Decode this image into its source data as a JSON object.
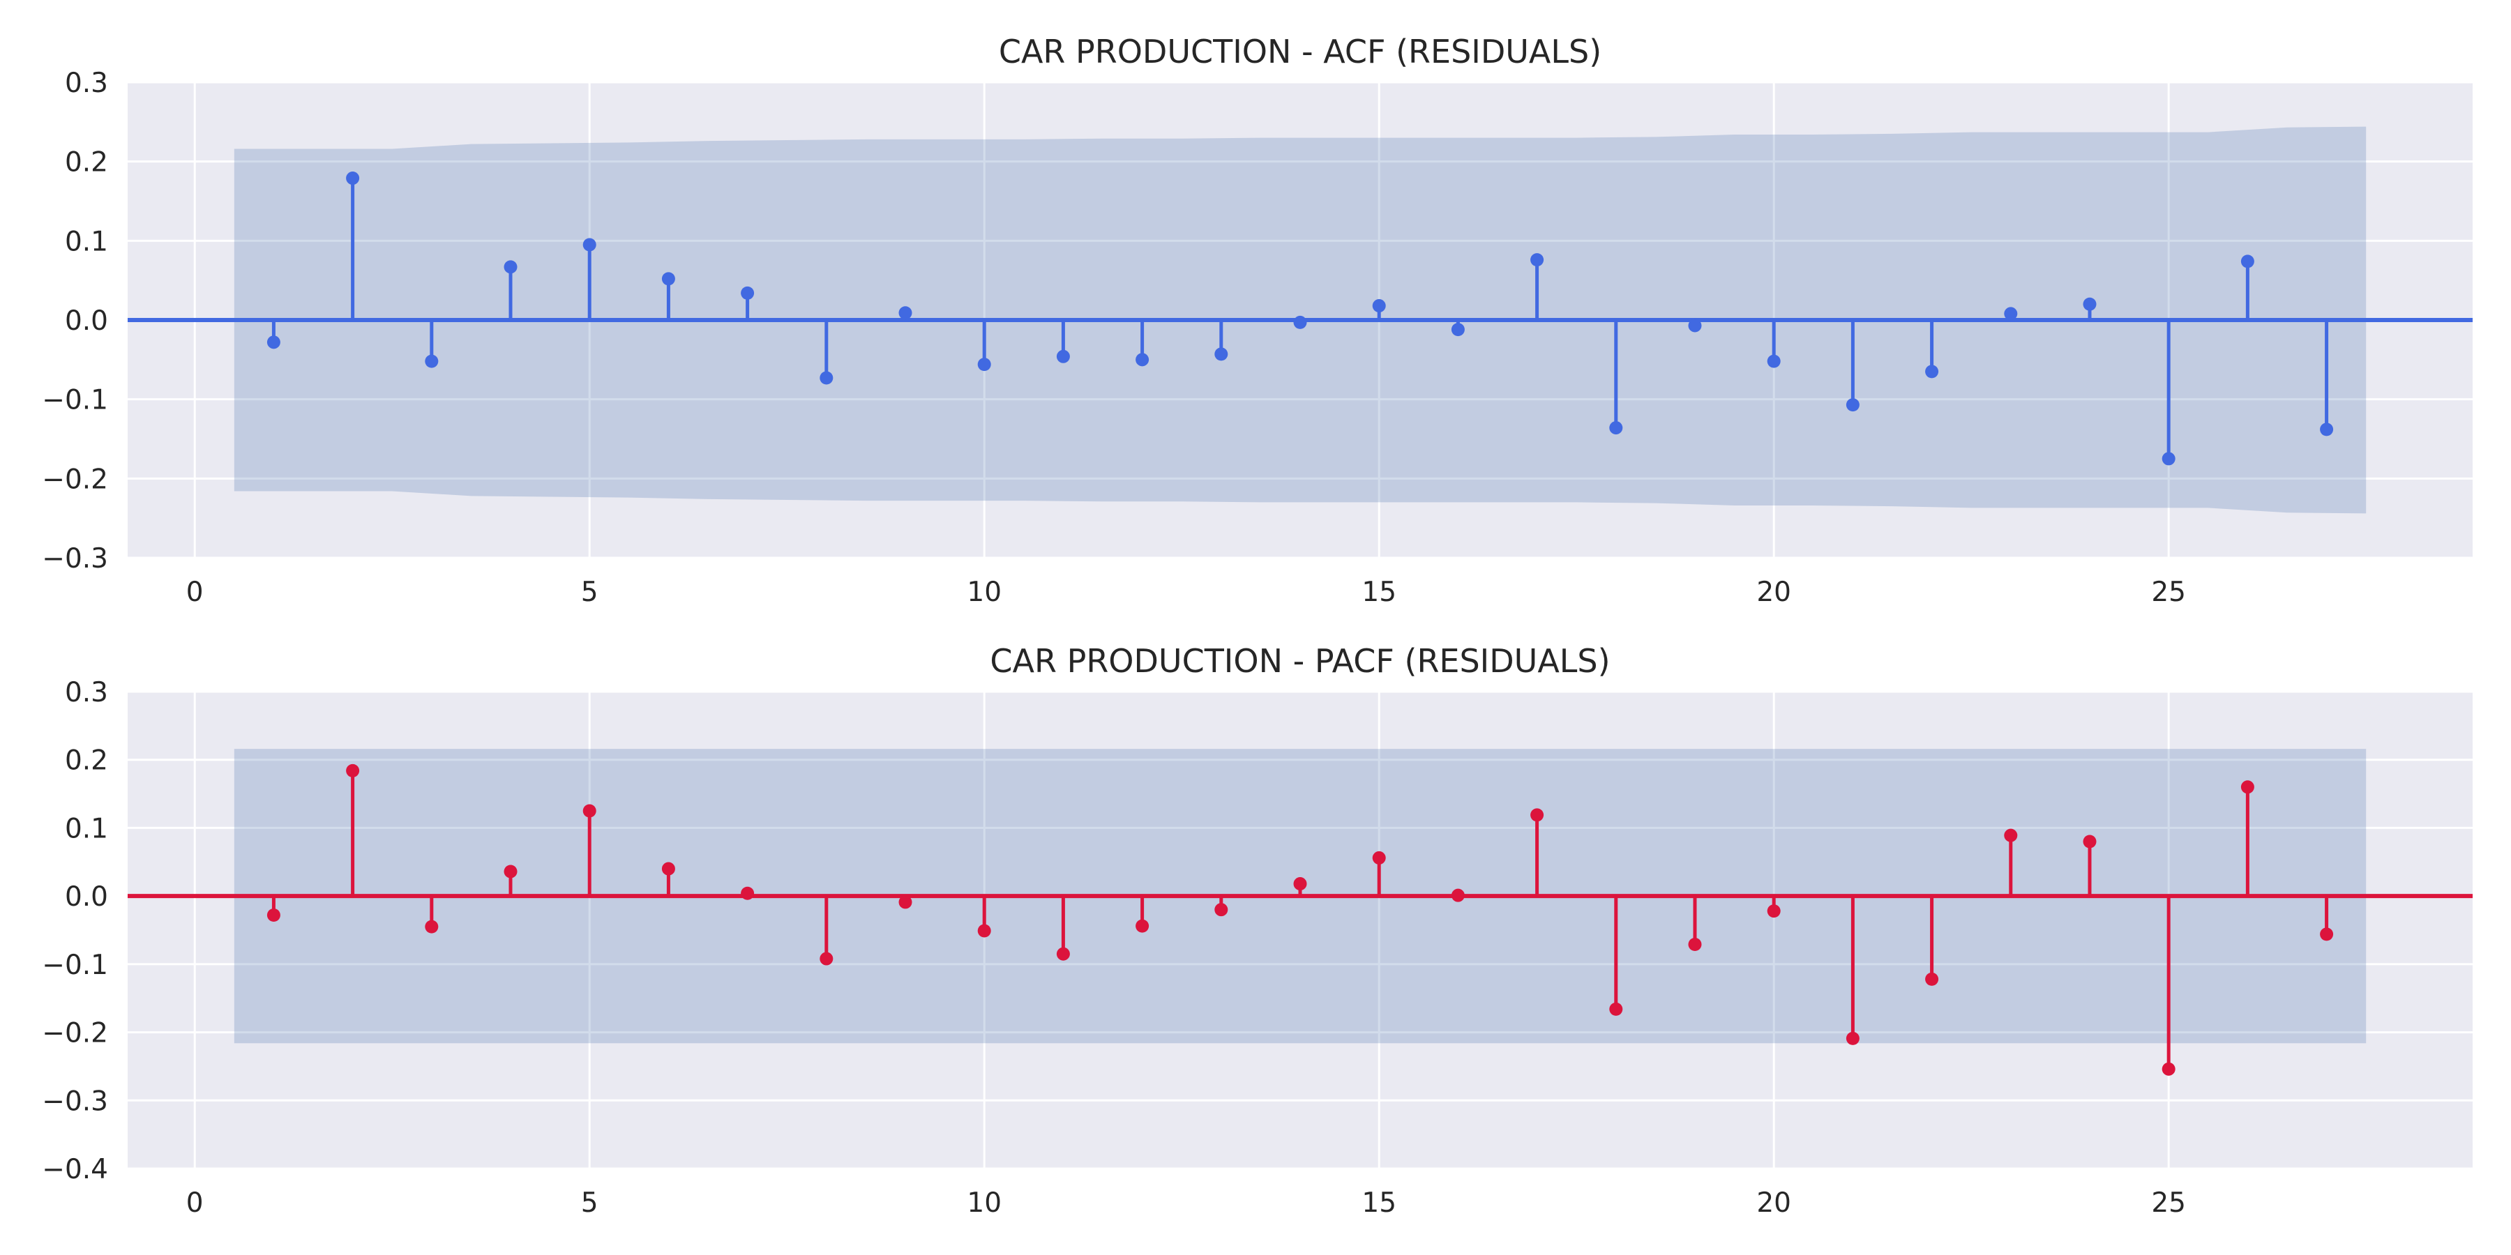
{
  "figure": {
    "background": "#ffffff",
    "plot_background": "#EAEAF2",
    "grid_color": "#ffffff",
    "band_color": "#4C72B0"
  },
  "chart_data": [
    {
      "type": "stem",
      "title": "CAR PRODUCTION - ACF (RESIDUALS)",
      "xlabel": "",
      "ylabel": "",
      "xlim": [
        -0.85,
        28.85
      ],
      "ylim": [
        -0.3,
        0.3
      ],
      "xticks": [
        0,
        5,
        10,
        15,
        20,
        25
      ],
      "xtick_labels": [
        "0",
        "5",
        "10",
        "15",
        "20",
        "25"
      ],
      "yticks": [
        0.3,
        0.2,
        0.1,
        0.0,
        -0.1,
        -0.2,
        -0.3
      ],
      "ytick_labels": [
        "0.3",
        "0.2",
        "0.1",
        "0.0",
        "−0.1",
        "−0.2",
        "−0.3"
      ],
      "grid": true,
      "color": "#4169E1",
      "lags": [
        1,
        2,
        3,
        4,
        5,
        6,
        7,
        8,
        9,
        10,
        11,
        12,
        13,
        14,
        15,
        16,
        17,
        18,
        19,
        20,
        21,
        22,
        23,
        24,
        25,
        26,
        27
      ],
      "values": [
        -0.028,
        0.179,
        -0.052,
        0.067,
        0.095,
        0.052,
        0.034,
        -0.073,
        0.009,
        -0.056,
        -0.046,
        -0.05,
        -0.043,
        -0.003,
        0.018,
        -0.012,
        0.076,
        -0.136,
        -0.007,
        -0.052,
        -0.107,
        -0.065,
        0.008,
        0.02,
        -0.175,
        0.074,
        -0.138
      ],
      "confidence_band": {
        "x": [
          0.5,
          1.5,
          2.5,
          3.5,
          4.5,
          5.5,
          6.5,
          7.5,
          8.5,
          9.5,
          10.5,
          11.5,
          12.5,
          13.5,
          14.5,
          15.5,
          16.5,
          17.5,
          18.5,
          19.5,
          20.5,
          21.5,
          22.5,
          23.5,
          24.5,
          25.5,
          26.5,
          27.5
        ],
        "upper": [
          0.216,
          0.216,
          0.216,
          0.222,
          0.223,
          0.224,
          0.226,
          0.227,
          0.228,
          0.228,
          0.228,
          0.229,
          0.229,
          0.23,
          0.23,
          0.23,
          0.23,
          0.23,
          0.231,
          0.234,
          0.234,
          0.235,
          0.237,
          0.237,
          0.237,
          0.237,
          0.243,
          0.244
        ]
      }
    },
    {
      "type": "stem",
      "title": "CAR PRODUCTION - PACF (RESIDUALS)",
      "xlabel": "",
      "ylabel": "",
      "xlim": [
        -0.85,
        28.85
      ],
      "ylim": [
        -0.4,
        0.3
      ],
      "xticks": [
        0,
        5,
        10,
        15,
        20,
        25
      ],
      "xtick_labels": [
        "0",
        "5",
        "10",
        "15",
        "20",
        "25"
      ],
      "yticks": [
        0.3,
        0.2,
        0.1,
        0.0,
        -0.1,
        -0.2,
        -0.3,
        -0.4
      ],
      "ytick_labels": [
        "0.3",
        "0.2",
        "0.1",
        "0.0",
        "−0.1",
        "−0.2",
        "−0.3",
        "−0.4"
      ],
      "grid": true,
      "color": "#DC143C",
      "lags": [
        1,
        2,
        3,
        4,
        5,
        6,
        7,
        8,
        9,
        10,
        11,
        12,
        13,
        14,
        15,
        16,
        17,
        18,
        19,
        20,
        21,
        22,
        23,
        24,
        25,
        26,
        27
      ],
      "values": [
        -0.028,
        0.184,
        -0.045,
        0.036,
        0.125,
        0.04,
        0.004,
        -0.092,
        -0.009,
        -0.051,
        -0.085,
        -0.044,
        -0.02,
        0.018,
        0.056,
        0.001,
        0.119,
        -0.166,
        -0.071,
        -0.022,
        -0.209,
        -0.122,
        0.089,
        0.08,
        -0.254,
        0.16,
        -0.056
      ],
      "confidence_band": {
        "x": [
          0.5,
          27.5
        ],
        "upper": [
          0.216,
          0.216
        ]
      }
    }
  ]
}
